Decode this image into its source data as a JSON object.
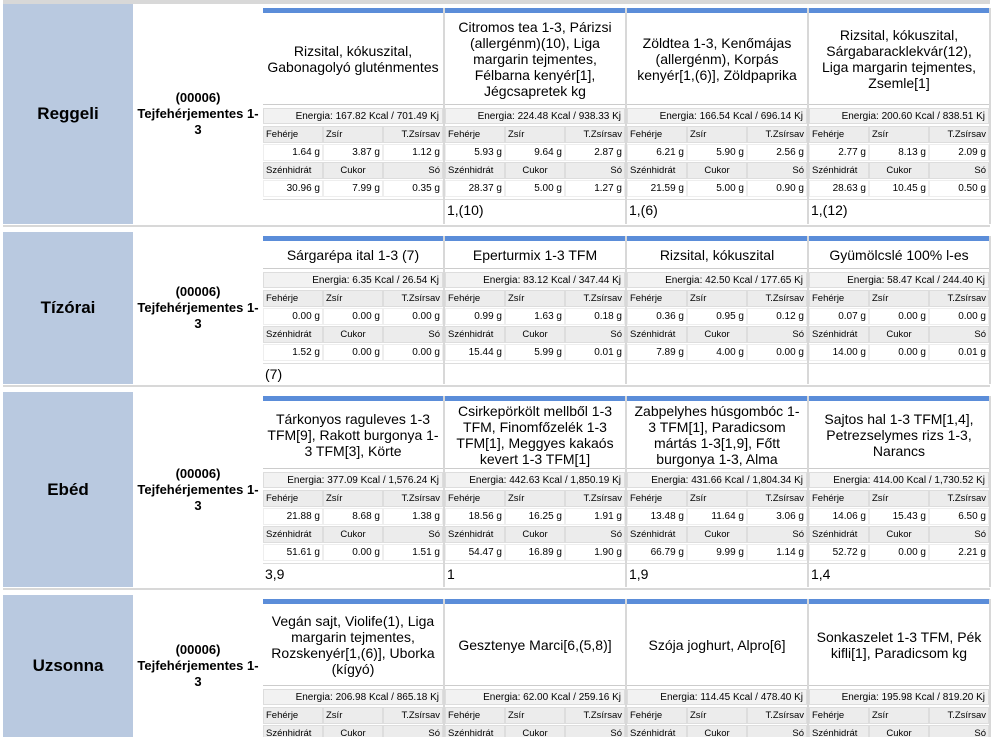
{
  "nutrient_labels": [
    "Fehérje",
    "Zsír",
    "T.Zsírsav",
    "Szénhidrát",
    "Cukor",
    "Só"
  ],
  "meals": [
    {
      "name": "Reggeli",
      "code": "(00006) Tejfehérjementes 1-3",
      "days": [
        {
          "menu": "Rizsital, kókuszital, Gabonagolyó gluténmentes",
          "energy": "Energia: 167.82 Kcal / 701.49 Kj",
          "nutrients": [
            "1.64 g",
            "3.87 g",
            "1.12 g",
            "30.96 g",
            "7.99 g",
            "0.35 g"
          ]
        },
        {
          "menu": "Citromos tea 1-3, Párizsi (allergénm)(10), Liga margarin tejmentes, Félbarna kenyér[1], Jégcsapretek kg",
          "energy": "Energia: 224.48 Kcal / 938.33 Kj",
          "nutrients": [
            "5.93 g",
            "9.64 g",
            "2.87 g",
            "28.37 g",
            "5.00 g",
            "1.27 g"
          ],
          "allergens": "1,(10)"
        },
        {
          "menu": "Zöldtea 1-3, Kenőmájas (allergénm), Korpás kenyér[1,(6)], Zöldpaprika",
          "energy": "Energia: 166.54 Kcal / 696.14 Kj",
          "nutrients": [
            "6.21 g",
            "5.90 g",
            "2.56 g",
            "21.59 g",
            "5.00 g",
            "0.90 g"
          ],
          "allergens": "1,(6)"
        },
        {
          "menu": "Rizsital, kókuszital, Sárgabaracklekvár(12), Liga margarin tejmentes, Zsemle[1]",
          "energy": "Energia: 200.60 Kcal / 838.51 Kj",
          "nutrients": [
            "2.77 g",
            "8.13 g",
            "2.09 g",
            "28.63 g",
            "10.45 g",
            "0.50 g"
          ],
          "allergens": "1,(12)"
        }
      ]
    },
    {
      "name": "Tízórai",
      "code": "(00006) Tejfehérjementes 1-3",
      "days": [
        {
          "menu": "Sárgarépa ital 1-3 (7)",
          "energy": "Energia: 6.35 Kcal / 26.54 Kj",
          "nutrients": [
            "0.00 g",
            "0.00 g",
            "0.00 g",
            "1.52 g",
            "0.00 g",
            "0.00 g"
          ],
          "allergens": "(7)"
        },
        {
          "menu": "Eperturmix 1-3 TFM",
          "energy": "Energia: 83.12 Kcal / 347.44 Kj",
          "nutrients": [
            "0.99 g",
            "1.63 g",
            "0.18 g",
            "15.44 g",
            "5.99 g",
            "0.01 g"
          ]
        },
        {
          "menu": "Rizsital, kókuszital",
          "energy": "Energia: 42.50 Kcal / 177.65 Kj",
          "nutrients": [
            "0.36 g",
            "0.95 g",
            "0.12 g",
            "7.89 g",
            "4.00 g",
            "0.00 g"
          ]
        },
        {
          "menu": "Gyümölcslé 100% l-es",
          "energy": "Energia: 58.47 Kcal / 244.40 Kj",
          "nutrients": [
            "0.07 g",
            "0.00 g",
            "0.00 g",
            "14.00 g",
            "0.00 g",
            "0.01 g"
          ]
        }
      ]
    },
    {
      "name": "Ebéd",
      "code": "(00006) Tejfehérjementes 1-3",
      "days": [
        {
          "menu": "Tárkonyos raguleves 1-3 TFM[9], Rakott burgonya 1-3  TFM[3], Körte",
          "energy": "Energia: 377.09 Kcal / 1,576.24 Kj",
          "nutrients": [
            "21.88 g",
            "8.68 g",
            "1.38 g",
            "51.61 g",
            "0.00 g",
            "1.51 g"
          ],
          "allergens": "3,9"
        },
        {
          "menu": "Csirkepörkölt mellből 1-3 TFM, Finomfőzelék 1-3 TFM[1], Meggyes kakaós kevert 1-3 TFM[1]",
          "energy": "Energia: 442.63 Kcal / 1,850.19 Kj",
          "nutrients": [
            "18.56 g",
            "16.25 g",
            "1.91 g",
            "54.47 g",
            "16.89 g",
            "1.90 g"
          ],
          "allergens": "1"
        },
        {
          "menu": "Zabpelyhes húsgombóc 1-3 TFM[1], Paradicsom mártás 1-3[1,9], Főtt burgonya 1-3, Alma",
          "energy": "Energia: 431.66 Kcal / 1,804.34 Kj",
          "nutrients": [
            "13.48 g",
            "11.64 g",
            "3.06 g",
            "66.79 g",
            "9.99 g",
            "1.14 g"
          ],
          "allergens": "1,9"
        },
        {
          "menu": "Sajtos hal 1-3 TFM[1,4], Petrezselymes rizs 1-3, Narancs",
          "energy": "Energia: 414.00 Kcal / 1,730.52 Kj",
          "nutrients": [
            "14.06 g",
            "15.43 g",
            "6.50 g",
            "52.72 g",
            "0.00 g",
            "2.21 g"
          ],
          "allergens": "1,4"
        }
      ]
    },
    {
      "name": "Uzsonna",
      "code": "(00006) Tejfehérjementes 1-3",
      "days": [
        {
          "menu": "Vegán sajt, Violife(1), Liga margarin tejmentes, Rozskenyér[1,(6)], Uborka (kígyó)",
          "energy": "Energia: 206.98 Kcal / 865.18 Kj"
        },
        {
          "menu": "Gesztenye Marci[6,(5,8)]",
          "energy": "Energia: 62.00 Kcal / 259.16 Kj"
        },
        {
          "menu": "Szója joghurt, Alpro[6]",
          "energy": "Energia: 114.45 Kcal / 478.40 Kj"
        },
        {
          "menu": "Sonkaszelet 1-3 TFM, Pék kifli[1], Paradicsom kg",
          "energy": "Energia: 195.98 Kcal / 819.20 Kj"
        }
      ]
    }
  ]
}
